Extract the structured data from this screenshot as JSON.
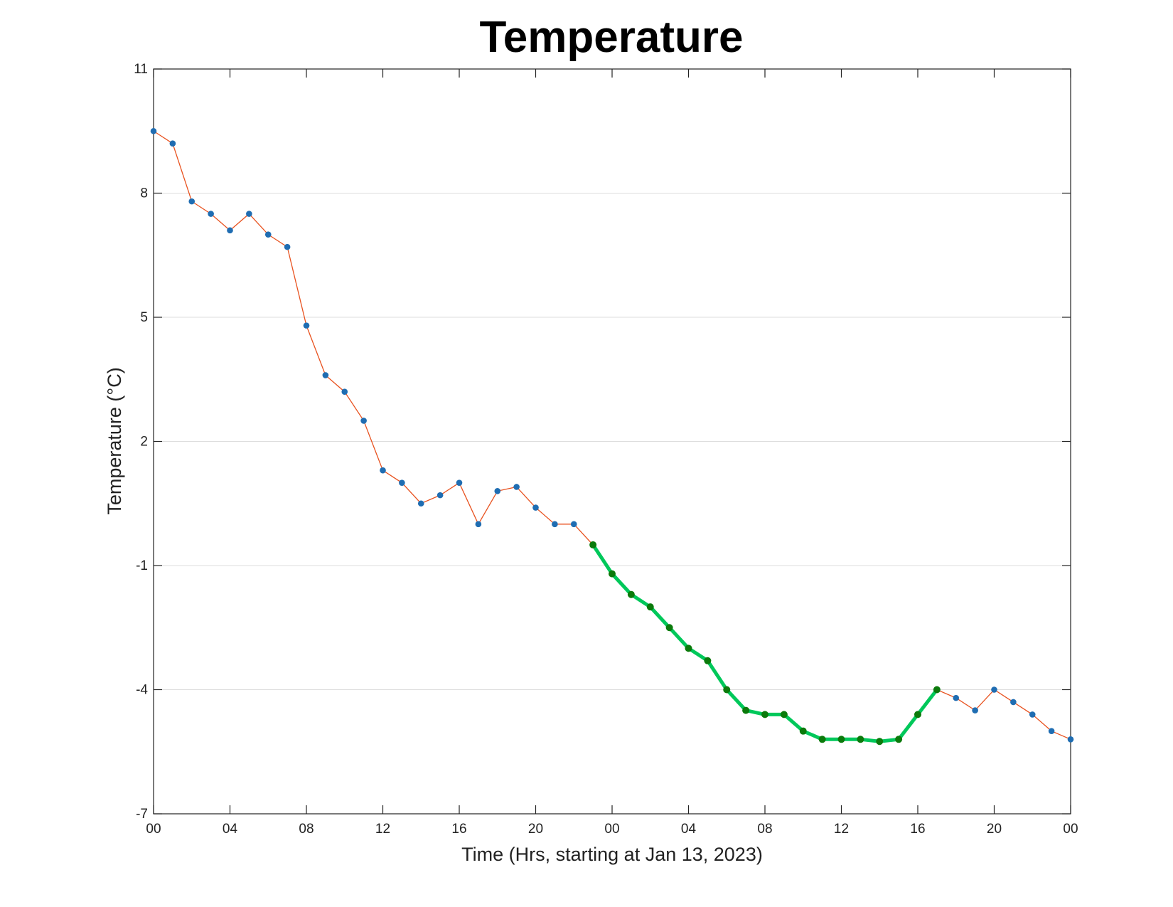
{
  "chart_data": {
    "type": "line",
    "title": "Temperature",
    "xlabel": "Time (Hrs, starting at Jan 13, 2023)",
    "ylabel": "Temperature (°C)",
    "xlim": [
      0,
      48
    ],
    "ylim": [
      -7,
      11
    ],
    "x_ticks": [
      0,
      4,
      8,
      12,
      16,
      20,
      24,
      28,
      32,
      36,
      40,
      44,
      48
    ],
    "x_tick_labels": [
      "00",
      "04",
      "08",
      "12",
      "16",
      "20",
      "00",
      "04",
      "08",
      "12",
      "16",
      "20",
      "00"
    ],
    "y_ticks": [
      -7,
      -4,
      -1,
      2,
      5,
      8,
      11
    ],
    "y_tick_labels": [
      "-7",
      "-4",
      "-1",
      "2",
      "5",
      "8",
      "11"
    ],
    "grid": "horizontal",
    "x": [
      0,
      1,
      2,
      3,
      4,
      5,
      6,
      7,
      8,
      9,
      10,
      11,
      12,
      13,
      14,
      15,
      16,
      17,
      18,
      19,
      20,
      21,
      22,
      23,
      24,
      25,
      26,
      27,
      28,
      29,
      30,
      31,
      32,
      33,
      34,
      35,
      36,
      37,
      38,
      39,
      40,
      41,
      42,
      43,
      44,
      45,
      46,
      47,
      48
    ],
    "values": [
      9.5,
      9.2,
      7.8,
      7.5,
      7.1,
      7.5,
      7.0,
      6.7,
      4.8,
      3.6,
      3.2,
      2.5,
      1.3,
      1.0,
      0.5,
      0.7,
      1.0,
      0.0,
      0.8,
      0.9,
      0.4,
      0.0,
      0.0,
      -0.5,
      -1.2,
      -1.7,
      -2.0,
      -2.5,
      -3.0,
      -3.3,
      -4.0,
      -4.5,
      -4.6,
      -4.6,
      -5.0,
      -5.2,
      -5.2,
      -5.2,
      -5.25,
      -5.2,
      -4.6,
      -4.0,
      -4.2,
      -4.5,
      -4.0,
      -4.3,
      -4.6,
      -5.0,
      -5.2
    ],
    "highlight": {
      "start_index": 23,
      "end_index": 41
    },
    "colors": {
      "line": "#e8521f",
      "marker": "#1f6db2",
      "highlight_line": "#00c85a",
      "highlight_marker": "#0b7a0b",
      "grid": "#dddddd",
      "axes": "#222222"
    }
  }
}
